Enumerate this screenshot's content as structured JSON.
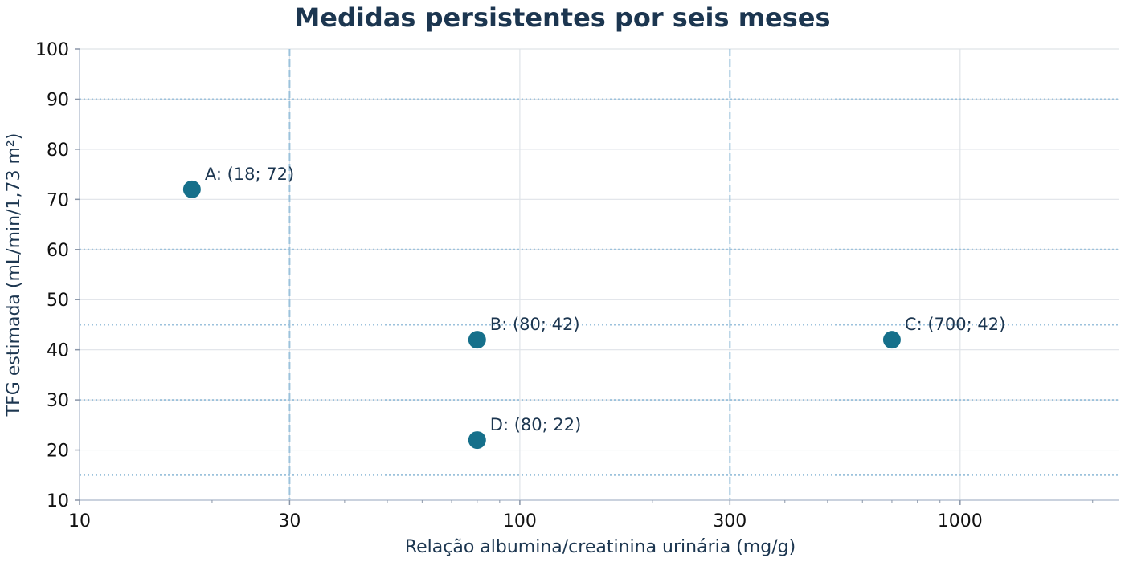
{
  "chart_data": {
    "type": "scatter",
    "title": "Medidas persistentes por seis meses",
    "xlabel": "Relação albumina/creatinina urinária (mg/g)",
    "ylabel": "TFG estimada (mL/min/1,73 m²)",
    "x_scale": "log",
    "xlim": [
      10,
      2300
    ],
    "ylim": [
      10,
      100
    ],
    "x_ticks": [
      10,
      30,
      100,
      300,
      1000
    ],
    "x_tick_labels": [
      "10",
      "30",
      "100",
      "300",
      "1000"
    ],
    "y_ticks": [
      10,
      20,
      30,
      40,
      50,
      60,
      70,
      80,
      90,
      100
    ],
    "y_tick_labels": [
      "10",
      "20",
      "30",
      "40",
      "50",
      "60",
      "70",
      "80",
      "90",
      "100"
    ],
    "grid": true,
    "x_reference_lines": [
      30,
      300
    ],
    "y_reference_lines": [
      15,
      30,
      45,
      60,
      90
    ],
    "marker_color": "#16708b",
    "points": [
      {
        "label": "A: (18; 72)",
        "x": 18,
        "y": 72
      },
      {
        "label": "B: (80; 42)",
        "x": 80,
        "y": 42
      },
      {
        "label": "C: (700; 42)",
        "x": 700,
        "y": 42
      },
      {
        "label": "D: (80; 22)",
        "x": 80,
        "y": 22
      }
    ]
  }
}
